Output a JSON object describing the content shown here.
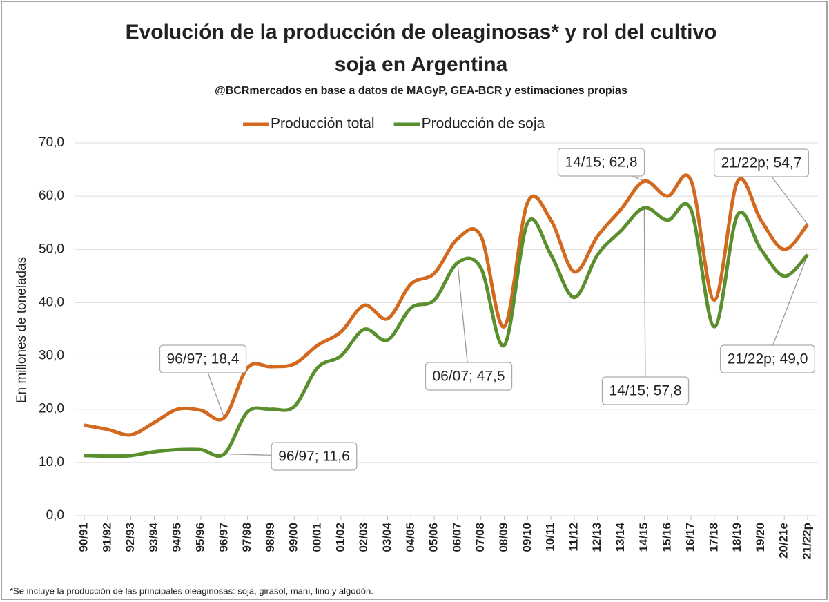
{
  "chart_data": {
    "type": "line",
    "title": "Evolución de la producción de oleaginosas* y rol del cultivo",
    "title_line2": "soja en Argentina",
    "subtitle": "@BCRmercados en base a datos de MAGyP, GEA-BCR y estimaciones propias",
    "y_label": "En millones de toneladas",
    "footnote": "*Se incluye la producción de las principales oleaginosas: soja, girasol, maní, lino y algodón.",
    "categories": [
      "90/91",
      "91/92",
      "92/93",
      "93/94",
      "94/95",
      "95/96",
      "96/97",
      "97/98",
      "98/99",
      "99/00",
      "00/01",
      "01/02",
      "02/03",
      "03/04",
      "04/05",
      "05/06",
      "06/07",
      "07/08",
      "08/09",
      "09/10",
      "10/11",
      "11/12",
      "12/13",
      "13/14",
      "14/15",
      "15/16",
      "16/17",
      "17/18",
      "18/19",
      "19/20",
      "20/21e",
      "21/22p"
    ],
    "series": [
      {
        "name": "Producción total",
        "color": "#d2691e",
        "values": [
          17.0,
          16.2,
          15.2,
          17.5,
          20.0,
          19.8,
          18.4,
          27.8,
          28.0,
          28.5,
          32.0,
          34.5,
          39.5,
          37.0,
          43.5,
          45.5,
          52.0,
          52.5,
          35.5,
          58.8,
          55.5,
          45.8,
          52.5,
          57.5,
          62.8,
          60.0,
          63.0,
          40.5,
          62.8,
          55.5,
          50.0,
          54.7
        ]
      },
      {
        "name": "Producción de soja",
        "color": "#5a8f2e",
        "values": [
          11.3,
          11.2,
          11.3,
          12.0,
          12.4,
          12.4,
          11.6,
          19.5,
          20.0,
          20.5,
          27.8,
          30.0,
          35.0,
          33.0,
          39.0,
          40.5,
          47.5,
          46.5,
          32.0,
          55.0,
          49.0,
          41.0,
          49.0,
          53.5,
          57.8,
          55.5,
          57.5,
          35.5,
          56.5,
          50.0,
          45.0,
          49.0
        ]
      }
    ],
    "annotations": [
      "96/97; 18,4",
      "96/97; 11,6",
      "06/07; 47,5",
      "14/15; 62,8",
      "14/15; 57,8",
      "21/22p; 54,7",
      "21/22p; 49,0"
    ],
    "ylim": [
      0,
      70
    ],
    "yticks": [
      {
        "value": 0,
        "label": "0,0"
      },
      {
        "value": 10,
        "label": "10,0"
      },
      {
        "value": 20,
        "label": "20,0"
      },
      {
        "value": 30,
        "label": "30,0"
      },
      {
        "value": 40,
        "label": "40,0"
      },
      {
        "value": 50,
        "label": "50,0"
      },
      {
        "value": 60,
        "label": "60,0"
      },
      {
        "value": 70,
        "label": "70,0"
      }
    ],
    "grid": true,
    "legend": "top"
  }
}
